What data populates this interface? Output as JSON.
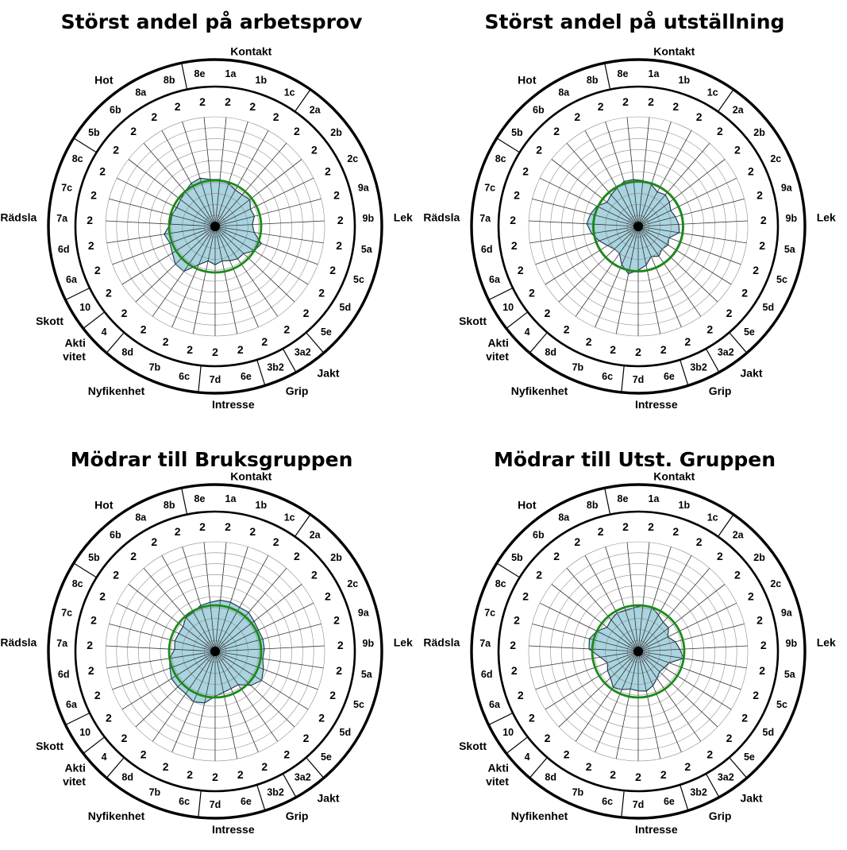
{
  "chart_data": [
    {
      "type": "radar",
      "title": "Störst andel på arbetsprov",
      "categories": [
        "1a",
        "1b",
        "1c",
        "2a",
        "2b",
        "2c",
        "9a",
        "9b",
        "5a",
        "5c",
        "5d",
        "5e",
        "3a2",
        "3b2",
        "6e",
        "7d",
        "6c",
        "7b",
        "8d",
        "4",
        "10",
        "6a",
        "6d",
        "7a",
        "7c",
        "8c",
        "5b",
        "6b",
        "8a",
        "8b",
        "8e"
      ],
      "scale_labels": [
        "2",
        "2",
        "2",
        "2",
        "2",
        "2",
        "2",
        "2",
        "2",
        "2",
        "2",
        "2",
        "2",
        "2",
        "2",
        "2",
        "2",
        "2",
        "2",
        "2",
        "2",
        "2",
        "2",
        "2",
        "2",
        "2",
        "2",
        "2",
        "2",
        "2",
        "2"
      ],
      "groups": [
        {
          "name": "Kontakt",
          "first": "8e",
          "last": "1c"
        },
        {
          "name": "Lek",
          "first": "2a",
          "last": "5e"
        },
        {
          "name": "Jakt",
          "first": "3a2",
          "last": "3a2"
        },
        {
          "name": "Grip",
          "first": "3b2",
          "last": "3b2"
        },
        {
          "name": "Intresse",
          "first": "6e",
          "last": "7d"
        },
        {
          "name": "Nyfikenhet",
          "first": "6c",
          "last": "8d"
        },
        {
          "name": "Akti vitet",
          "first": "4",
          "last": "4"
        },
        {
          "name": "Skott",
          "first": "10",
          "last": "10"
        },
        {
          "name": "Rädsla",
          "first": "6a",
          "last": "8c"
        },
        {
          "name": "Hot",
          "first": "5b",
          "last": "8b"
        }
      ],
      "values": [
        0.43,
        0.41,
        0.38,
        0.38,
        0.4,
        0.36,
        0.37,
        0.34,
        0.36,
        0.45,
        0.42,
        0.36,
        0.36,
        0.34,
        0.32,
        0.35,
        0.32,
        0.38,
        0.5,
        0.5,
        0.46,
        0.44,
        0.47,
        0.41,
        0.41,
        0.39,
        0.4,
        0.42,
        0.45,
        0.46,
        0.43
      ],
      "reference": 0.42,
      "range": [
        0,
        1
      ],
      "fill_color": "#a9d4e0",
      "reference_color": "#1a8a1a"
    },
    {
      "type": "radar",
      "title": "Störst andel på utställning",
      "categories": [
        "1a",
        "1b",
        "1c",
        "2a",
        "2b",
        "2c",
        "9a",
        "9b",
        "5a",
        "5c",
        "5d",
        "5e",
        "3a2",
        "3b2",
        "6e",
        "7d",
        "6c",
        "7b",
        "8d",
        "4",
        "10",
        "6a",
        "6d",
        "7a",
        "7c",
        "8c",
        "5b",
        "6b",
        "8a",
        "8b",
        "8e"
      ],
      "scale_labels": [
        "2",
        "2",
        "2",
        "2",
        "2",
        "2",
        "2",
        "2",
        "2",
        "2",
        "2",
        "2",
        "2",
        "2",
        "2",
        "2",
        "2",
        "2",
        "2",
        "2",
        "2",
        "2",
        "2",
        "2",
        "2",
        "2",
        "2",
        "2",
        "2",
        "2",
        "2"
      ],
      "groups": [
        {
          "name": "Kontakt",
          "first": "8e",
          "last": "1c"
        },
        {
          "name": "Lek",
          "first": "2a",
          "last": "5e"
        },
        {
          "name": "Jakt",
          "first": "3a2",
          "last": "3a2"
        },
        {
          "name": "Grip",
          "first": "3b2",
          "last": "3b2"
        },
        {
          "name": "Intresse",
          "first": "6e",
          "last": "7d"
        },
        {
          "name": "Nyfikenhet",
          "first": "6c",
          "last": "8d"
        },
        {
          "name": "Akti vitet",
          "first": "4",
          "last": "4"
        },
        {
          "name": "Skott",
          "first": "10",
          "last": "10"
        },
        {
          "name": "Rädsla",
          "first": "6a",
          "last": "8c"
        },
        {
          "name": "Hot",
          "first": "5b",
          "last": "8b"
        }
      ],
      "values": [
        0.42,
        0.4,
        0.36,
        0.38,
        0.36,
        0.33,
        0.35,
        0.37,
        0.38,
        0.3,
        0.32,
        0.3,
        0.33,
        0.3,
        0.36,
        0.4,
        0.44,
        0.38,
        0.3,
        0.3,
        0.33,
        0.38,
        0.43,
        0.47,
        0.45,
        0.42,
        0.36,
        0.38,
        0.4,
        0.43,
        0.43
      ],
      "reference": 0.41,
      "range": [
        0,
        1
      ],
      "fill_color": "#a9d4e0",
      "reference_color": "#1a8a1a"
    },
    {
      "type": "radar",
      "title": "Mödrar till Bruksgruppen",
      "categories": [
        "1a",
        "1b",
        "1c",
        "2a",
        "2b",
        "2c",
        "9a",
        "9b",
        "5a",
        "5c",
        "5d",
        "5e",
        "3a2",
        "3b2",
        "6e",
        "7d",
        "6c",
        "7b",
        "8d",
        "4",
        "10",
        "6a",
        "6d",
        "7a",
        "7c",
        "8c",
        "5b",
        "6b",
        "8a",
        "8b",
        "8e"
      ],
      "scale_labels": [
        "2",
        "2",
        "2",
        "2",
        "2",
        "2",
        "2",
        "2",
        "2",
        "2",
        "2",
        "2",
        "2",
        "2",
        "2",
        "2",
        "2",
        "2",
        "2",
        "2",
        "2",
        "2",
        "2",
        "2",
        "2",
        "2",
        "2",
        "2",
        "2",
        "2",
        "2"
      ],
      "groups": [
        {
          "name": "Kontakt",
          "first": "8e",
          "last": "1c"
        },
        {
          "name": "Lek",
          "first": "2a",
          "last": "5e"
        },
        {
          "name": "Jakt",
          "first": "3a2",
          "last": "3a2"
        },
        {
          "name": "Grip",
          "first": "3b2",
          "last": "3b2"
        },
        {
          "name": "Intresse",
          "first": "6e",
          "last": "7d"
        },
        {
          "name": "Nyfikenhet",
          "first": "6c",
          "last": "8d"
        },
        {
          "name": "Akti vitet",
          "first": "4",
          "last": "4"
        },
        {
          "name": "Skott",
          "first": "10",
          "last": "10"
        },
        {
          "name": "Rädsla",
          "first": "6a",
          "last": "8c"
        },
        {
          "name": "Hot",
          "first": "5b",
          "last": "8b"
        }
      ],
      "values": [
        0.47,
        0.47,
        0.46,
        0.47,
        0.45,
        0.44,
        0.45,
        0.45,
        0.44,
        0.47,
        0.5,
        0.45,
        0.37,
        0.37,
        0.38,
        0.41,
        0.48,
        0.5,
        0.47,
        0.47,
        0.47,
        0.44,
        0.42,
        0.37,
        0.38,
        0.37,
        0.37,
        0.41,
        0.41,
        0.44,
        0.45
      ],
      "reference": 0.42,
      "range": [
        0,
        1
      ],
      "fill_color": "#a9d4e0",
      "reference_color": "#1a8a1a"
    },
    {
      "type": "radar",
      "title": "Mödrar till Utst. Gruppen",
      "categories": [
        "1a",
        "1b",
        "1c",
        "2a",
        "2b",
        "2c",
        "9a",
        "9b",
        "5a",
        "5c",
        "5d",
        "5e",
        "3a2",
        "3b2",
        "6e",
        "7d",
        "6c",
        "7b",
        "8d",
        "4",
        "10",
        "6a",
        "6d",
        "7a",
        "7c",
        "8c",
        "5b",
        "6b",
        "8a",
        "8b",
        "8e"
      ],
      "scale_labels": [
        "2",
        "2",
        "2",
        "2",
        "2",
        "2",
        "2",
        "2",
        "2",
        "2",
        "2",
        "2",
        "2",
        "2",
        "2",
        "2",
        "2",
        "2",
        "2",
        "2",
        "2",
        "2",
        "2",
        "2",
        "2",
        "2",
        "2",
        "2",
        "2",
        "2",
        "2"
      ],
      "groups": [
        {
          "name": "Kontakt",
          "first": "8e",
          "last": "1c"
        },
        {
          "name": "Lek",
          "first": "2a",
          "last": "5e"
        },
        {
          "name": "Jakt",
          "first": "3a2",
          "last": "3a2"
        },
        {
          "name": "Grip",
          "first": "3b2",
          "last": "3b2"
        },
        {
          "name": "Intresse",
          "first": "6e",
          "last": "7d"
        },
        {
          "name": "Nyfikenhet",
          "first": "6c",
          "last": "8d"
        },
        {
          "name": "Akti vitet",
          "first": "4",
          "last": "4"
        },
        {
          "name": "Skott",
          "first": "10",
          "last": "10"
        },
        {
          "name": "Rädsla",
          "first": "6a",
          "last": "8c"
        },
        {
          "name": "Hot",
          "first": "5b",
          "last": "8b"
        }
      ],
      "values": [
        0.42,
        0.42,
        0.38,
        0.35,
        0.35,
        0.3,
        0.35,
        0.38,
        0.42,
        0.3,
        0.28,
        0.27,
        0.3,
        0.34,
        0.37,
        0.36,
        0.35,
        0.38,
        0.4,
        0.35,
        0.33,
        0.3,
        0.35,
        0.45,
        0.46,
        0.42,
        0.36,
        0.38,
        0.4,
        0.39,
        0.4
      ],
      "reference": 0.42,
      "range": [
        0,
        1
      ],
      "fill_color": "#a9d4e0",
      "reference_color": "#1a8a1a"
    }
  ]
}
